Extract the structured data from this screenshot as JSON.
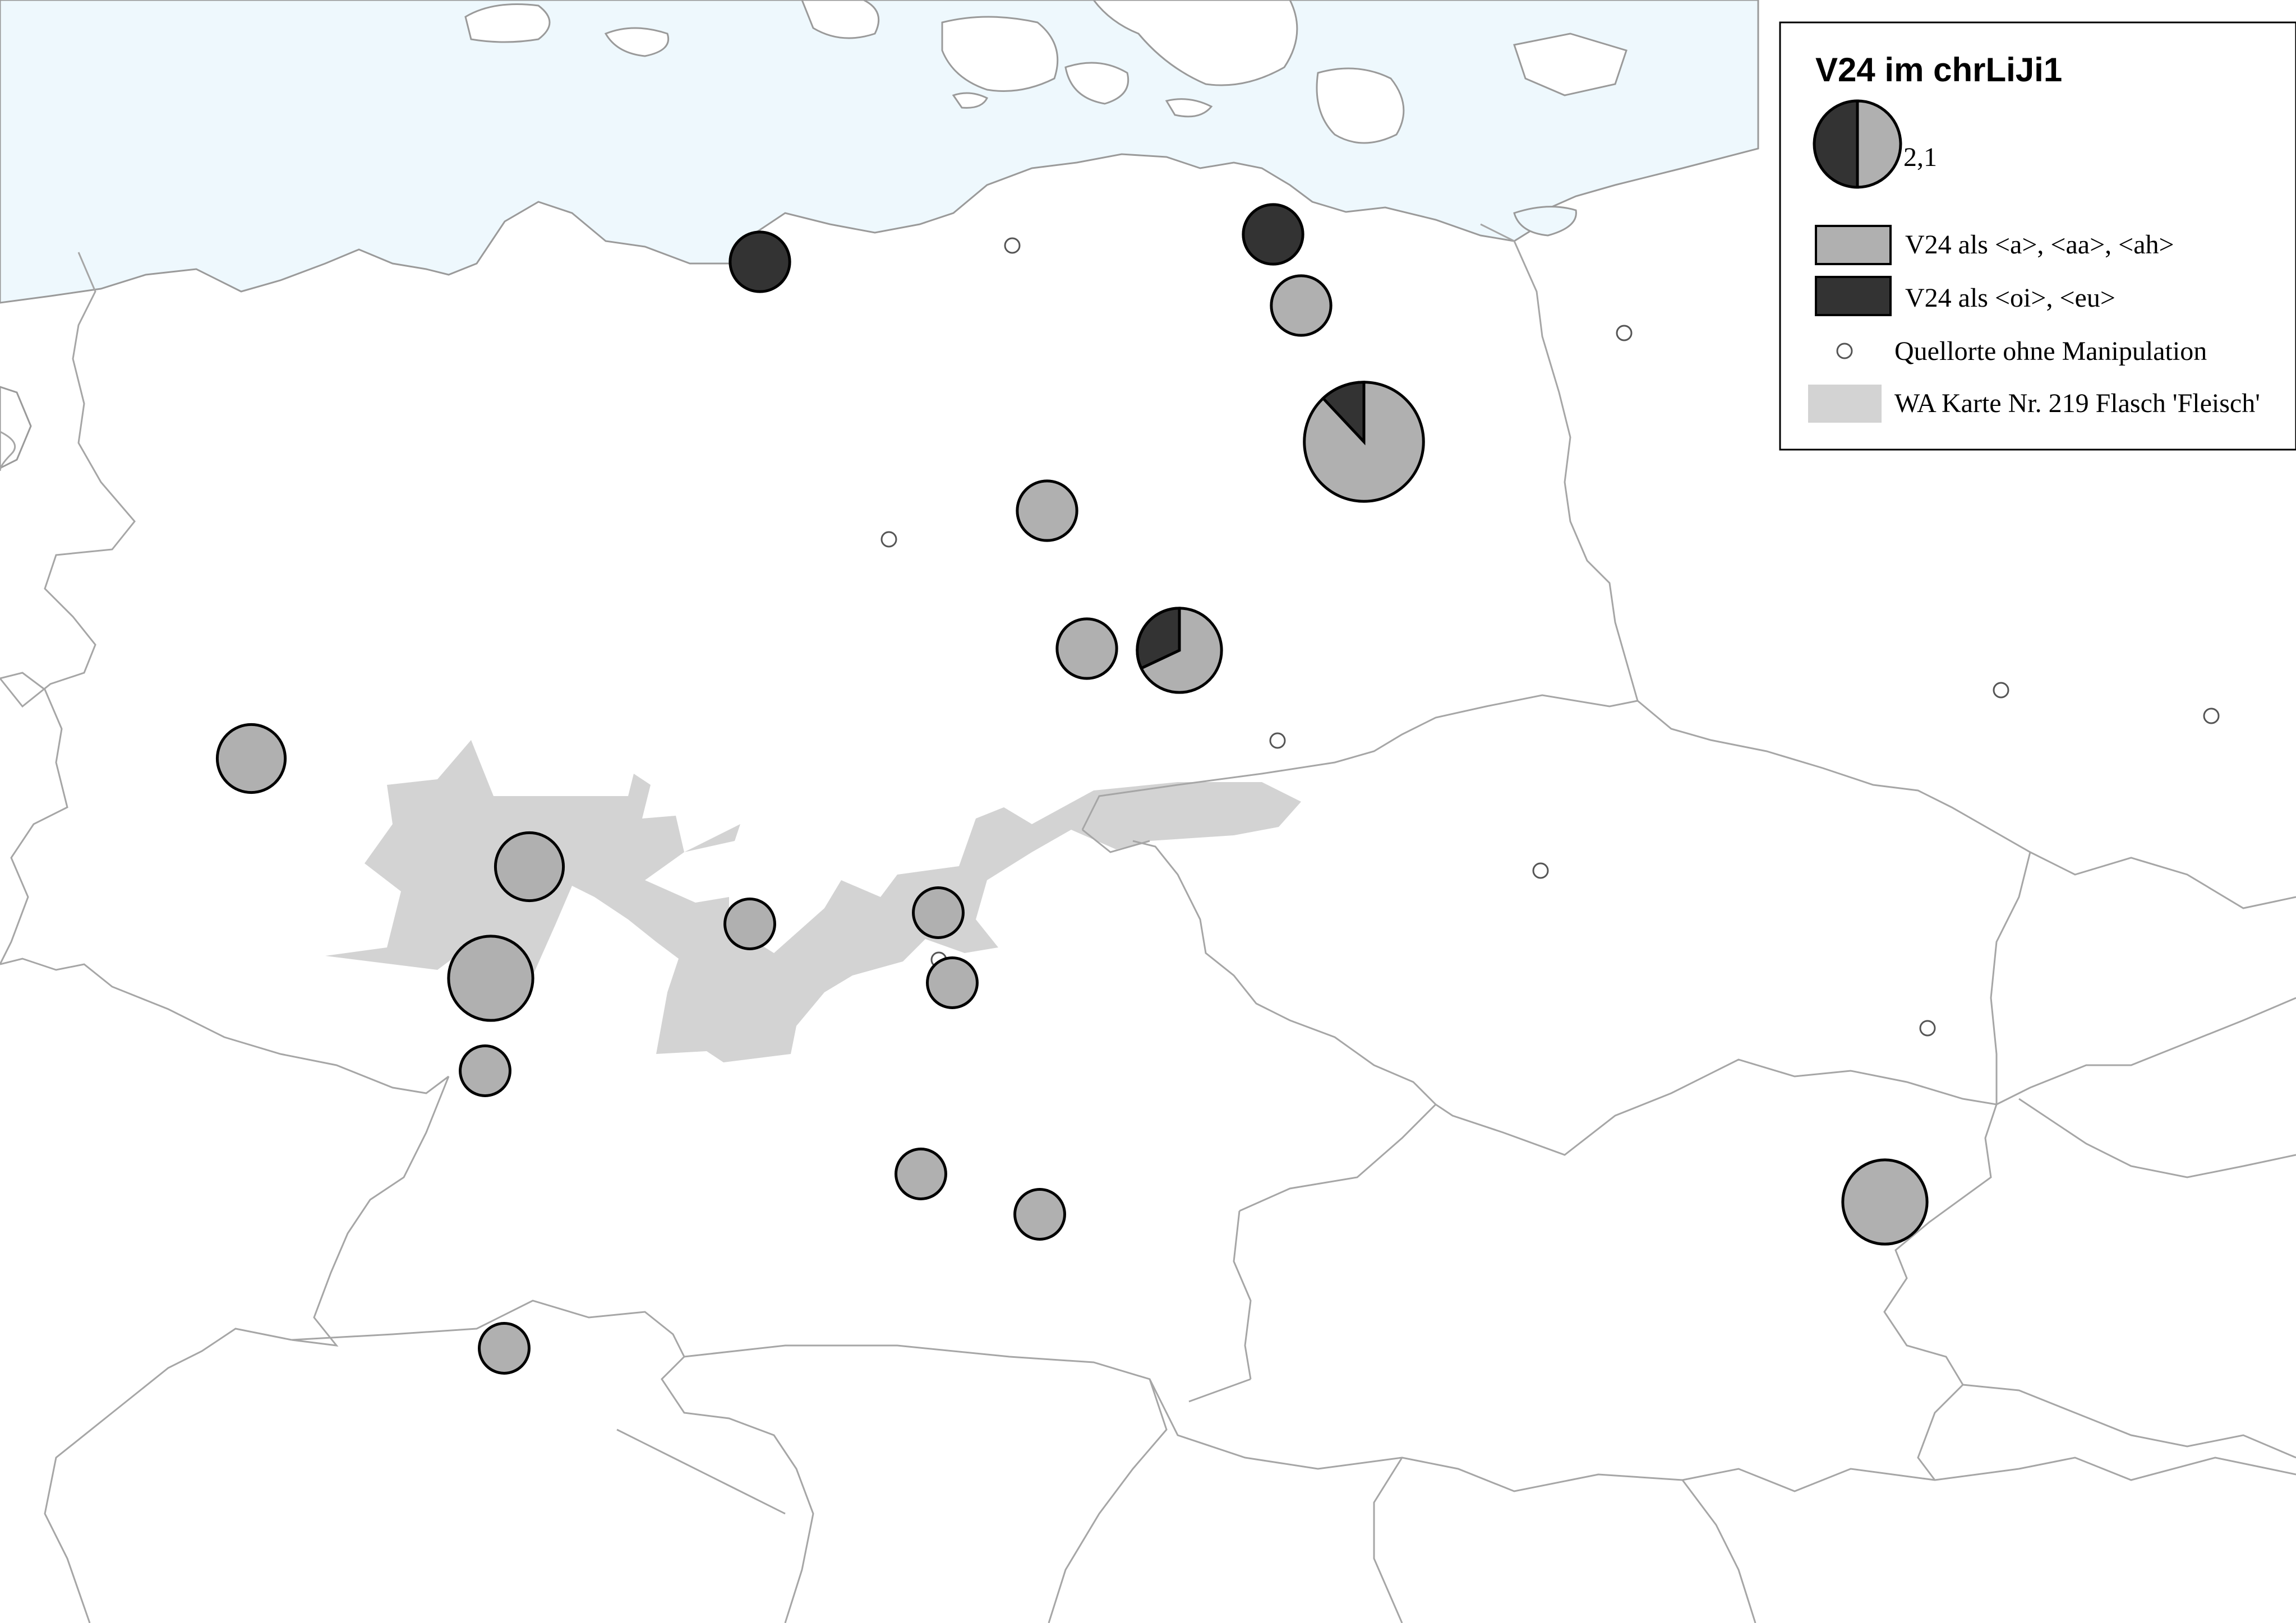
{
  "legend": {
    "title": "V24 im chrLiJi1",
    "size_reference_label": "2,1",
    "items": [
      {
        "label": "V24 als <a>, <aa>, <ah>",
        "color": "#b0b0b0",
        "icon": "gray-swatch"
      },
      {
        "label": "V24 als <oi>, <eu>",
        "color": "#333333",
        "icon": "dark-swatch"
      },
      {
        "label": "Quellorte ohne Manipulation",
        "icon": "small-circle"
      },
      {
        "label": "WA Karte Nr. 219 Flasch 'Fleisch'",
        "color": "#d3d3d3",
        "icon": "area-swatch"
      }
    ]
  },
  "colors": {
    "sea": "#eef8fd",
    "land": "#ffffff",
    "border": "#a6a6a6",
    "wa_area": "#d3d3d3",
    "category_a": "#b0b0b0",
    "category_oi": "#333333"
  },
  "symbols": [
    {
      "name": "pie-bremen",
      "share_oi": 1.0,
      "value": 1
    },
    {
      "name": "pie-stettin",
      "share_oi": 1.0,
      "value": 1
    },
    {
      "name": "pie-north-east-2",
      "share_oi": 0.0,
      "value": 1
    },
    {
      "name": "pie-berlin-large",
      "share_oi": 0.12,
      "value": 4
    },
    {
      "name": "pie-central-1",
      "share_oi": 0.0,
      "value": 1
    },
    {
      "name": "pie-central-2",
      "share_oi": 0.0,
      "value": 1
    },
    {
      "name": "pie-central-mixed",
      "share_oi": 0.32,
      "value": 2
    },
    {
      "name": "pie-west-1",
      "share_oi": 0.0,
      "value": 1.3
    },
    {
      "name": "pie-rhine-1",
      "share_oi": 0.0,
      "value": 1.3
    },
    {
      "name": "pie-rhine-2",
      "share_oi": 0.0,
      "value": 2
    },
    {
      "name": "pie-rhine-3",
      "share_oi": 0.0,
      "value": 0.7
    },
    {
      "name": "pie-hesse",
      "share_oi": 0.0,
      "value": 0.7
    },
    {
      "name": "pie-franconia-1",
      "share_oi": 0.0,
      "value": 0.7
    },
    {
      "name": "pie-franconia-2",
      "share_oi": 0.0,
      "value": 0.7
    },
    {
      "name": "pie-swabia-1",
      "share_oi": 0.0,
      "value": 0.7
    },
    {
      "name": "pie-swabia-2",
      "share_oi": 0.0,
      "value": 0.7
    },
    {
      "name": "pie-switzerland",
      "share_oi": 0.0,
      "value": 0.7
    },
    {
      "name": "pie-vienna",
      "share_oi": 0.0,
      "value": 2
    }
  ]
}
